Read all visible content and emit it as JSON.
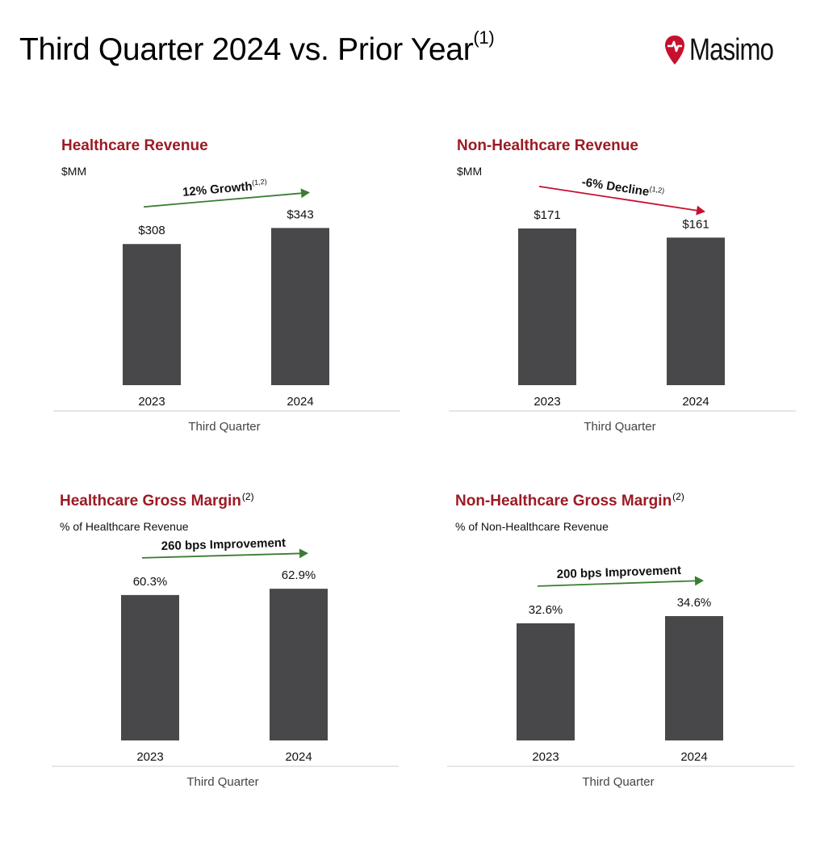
{
  "title": "Third Quarter 2024 vs. Prior Year",
  "title_sup": "(1)",
  "logo": {
    "text": "Masimo",
    "brand_color": "#c8102e"
  },
  "colors": {
    "bar": "#48484a",
    "title_red": "#9b1b24",
    "growth_arrow": "#3a7d32",
    "decline_arrow": "#c8102e"
  },
  "chart_data": [
    {
      "type": "bar",
      "title": "Healthcare Revenue",
      "title_sup": "",
      "subtitle": "$MM",
      "categories": [
        "2023",
        "2024"
      ],
      "values": [
        308,
        343
      ],
      "value_labels": [
        "$308",
        "$343"
      ],
      "xlabel": "Third Quarter",
      "ylabel": "",
      "ylim": [
        0,
        400
      ],
      "annotation": {
        "text": "12% Growth",
        "sup": "(1,2)",
        "direction": "up"
      }
    },
    {
      "type": "bar",
      "title": "Non-Healthcare Revenue",
      "title_sup": "",
      "subtitle": "$MM",
      "categories": [
        "2023",
        "2024"
      ],
      "values": [
        171,
        161
      ],
      "value_labels": [
        "$171",
        "$161"
      ],
      "xlabel": "Third Quarter",
      "ylabel": "",
      "ylim": [
        0,
        200
      ],
      "annotation": {
        "text": "-6% Decline",
        "sup": "(1,2)",
        "direction": "down"
      }
    },
    {
      "type": "bar",
      "title": "Healthcare Gross Margin",
      "title_sup": "(2)",
      "subtitle": "% of Healthcare Revenue",
      "categories": [
        "2023",
        "2024"
      ],
      "values": [
        60.3,
        62.9
      ],
      "value_labels": [
        "60.3%",
        "62.9%"
      ],
      "xlabel": "Third Quarter",
      "ylabel": "",
      "ylim": [
        0,
        76
      ],
      "annotation": {
        "text": "260 bps Improvement",
        "sup": "",
        "direction": "up"
      }
    },
    {
      "type": "bar",
      "title": "Non-Healthcare Gross Margin",
      "title_sup": "(2)",
      "subtitle": "% of Non-Healthcare Revenue",
      "categories": [
        "2023",
        "2024"
      ],
      "values": [
        32.6,
        34.6
      ],
      "value_labels": [
        "32.6%",
        "34.6%"
      ],
      "xlabel": "Third Quarter",
      "ylabel": "",
      "ylim": [
        0,
        51
      ],
      "annotation": {
        "text": "200 bps Improvement",
        "sup": "",
        "direction": "up"
      }
    }
  ]
}
